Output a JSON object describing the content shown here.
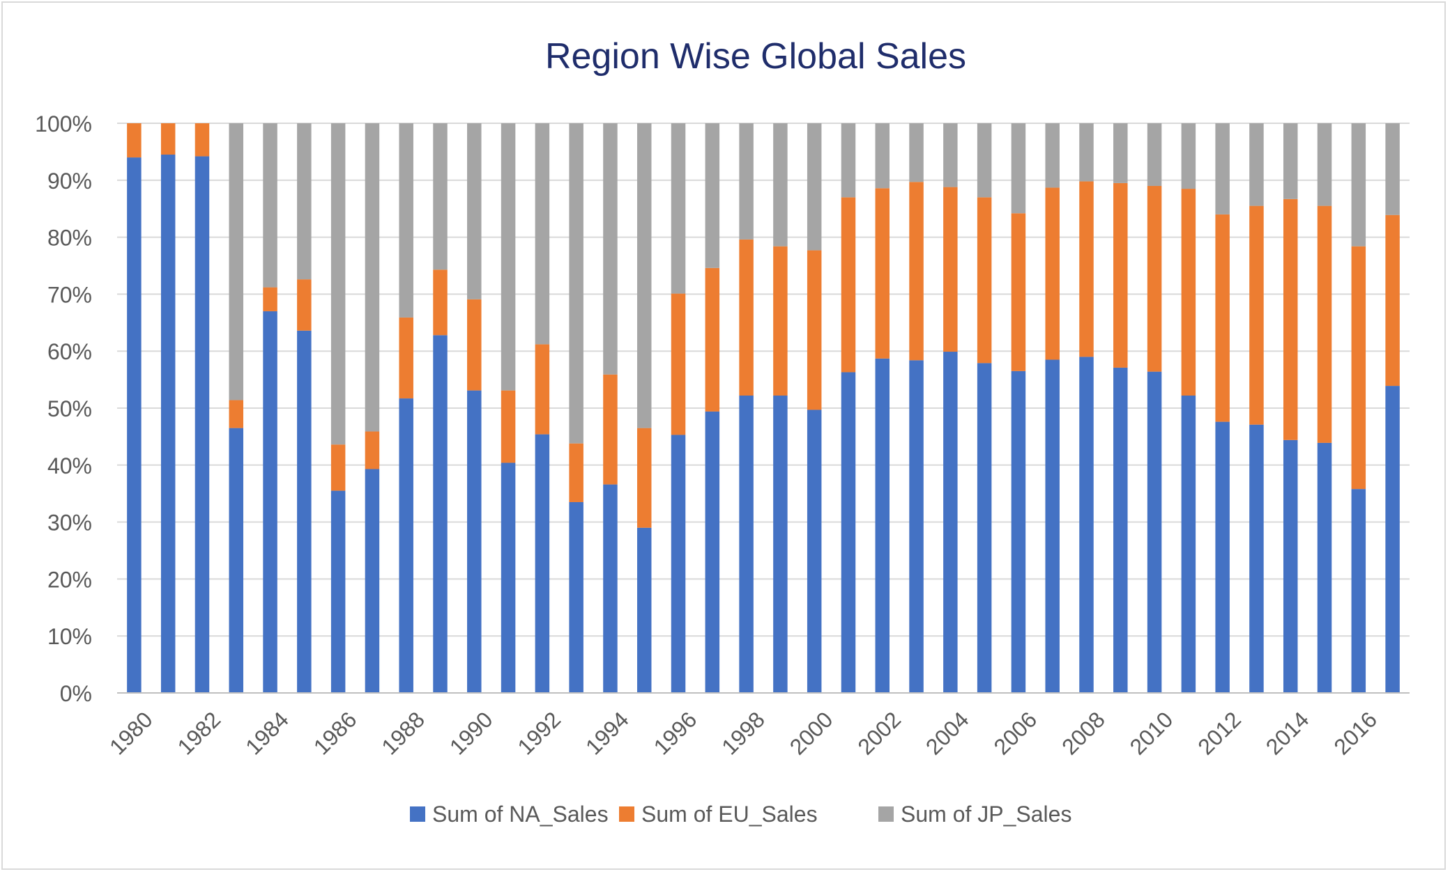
{
  "chart_data": {
    "type": "bar",
    "stacked": "percent",
    "title": "Region Wise Global Sales",
    "xlabel": "",
    "ylabel": "",
    "ylim": [
      0,
      100
    ],
    "y_ticks": [
      "0%",
      "10%",
      "20%",
      "30%",
      "40%",
      "50%",
      "60%",
      "70%",
      "80%",
      "90%",
      "100%"
    ],
    "x_tick_labels": [
      "1980",
      "1982",
      "1984",
      "1986",
      "1988",
      "1990",
      "1992",
      "1994",
      "1996",
      "1998",
      "2000",
      "2002",
      "2004",
      "2006",
      "2008",
      "2010",
      "2012",
      "2014",
      "2016"
    ],
    "grid": true,
    "legend_position": "bottom",
    "categories": [
      "1980",
      "1981",
      "1982",
      "1983",
      "1984",
      "1985",
      "1986",
      "1987",
      "1988",
      "1989",
      "1990",
      "1991",
      "1992",
      "1993",
      "1994",
      "1995",
      "1996",
      "1997",
      "1998",
      "1999",
      "2000",
      "2001",
      "2002",
      "2003",
      "2004",
      "2005",
      "2006",
      "2007",
      "2008",
      "2009",
      "2010",
      "2011",
      "2012",
      "2013",
      "2014",
      "2015",
      "2016",
      "2017"
    ],
    "series": [
      {
        "name": "Sum of NA_Sales",
        "color": "#4472c4",
        "values": [
          94,
          94.5,
          94.2,
          46.5,
          67,
          63.6,
          35.5,
          39.3,
          51.7,
          62.8,
          53.1,
          40.4,
          45.4,
          33.5,
          36.6,
          29,
          45.3,
          49.4,
          52.2,
          52.2,
          49.7,
          56.3,
          58.7,
          58.4,
          59.9,
          57.9,
          56.5,
          58.5,
          59,
          57.1,
          56.4,
          52.2,
          47.6,
          47.1,
          44.4,
          43.9,
          35.8,
          53.9
        ]
      },
      {
        "name": "Sum of EU_Sales",
        "color": "#ed7d31",
        "values": [
          6,
          5.5,
          5.8,
          4.9,
          4.2,
          9,
          8.1,
          6.6,
          14.2,
          11.5,
          16,
          12.7,
          15.8,
          10.3,
          19.3,
          17.5,
          24.8,
          25.2,
          27.4,
          26.2,
          28,
          30.7,
          29.9,
          31.3,
          28.9,
          29.1,
          27.7,
          30.2,
          30.8,
          32.4,
          32.6,
          36.3,
          36.4,
          38.4,
          42.3,
          41.6,
          42.6,
          30
        ]
      },
      {
        "name": "Sum of JP_Sales",
        "color": "#a5a5a5",
        "values": [
          0,
          0,
          0,
          48.6,
          28.8,
          27.4,
          56.4,
          54.1,
          34.1,
          25.7,
          30.9,
          46.9,
          38.8,
          56.2,
          44.1,
          53.5,
          29.9,
          25.4,
          20.4,
          21.6,
          22.3,
          13,
          11.4,
          10.3,
          11.2,
          13,
          15.8,
          11.3,
          10.2,
          10.5,
          11,
          11.5,
          16,
          14.5,
          13.3,
          14.5,
          21.6,
          16.1
        ]
      }
    ]
  }
}
